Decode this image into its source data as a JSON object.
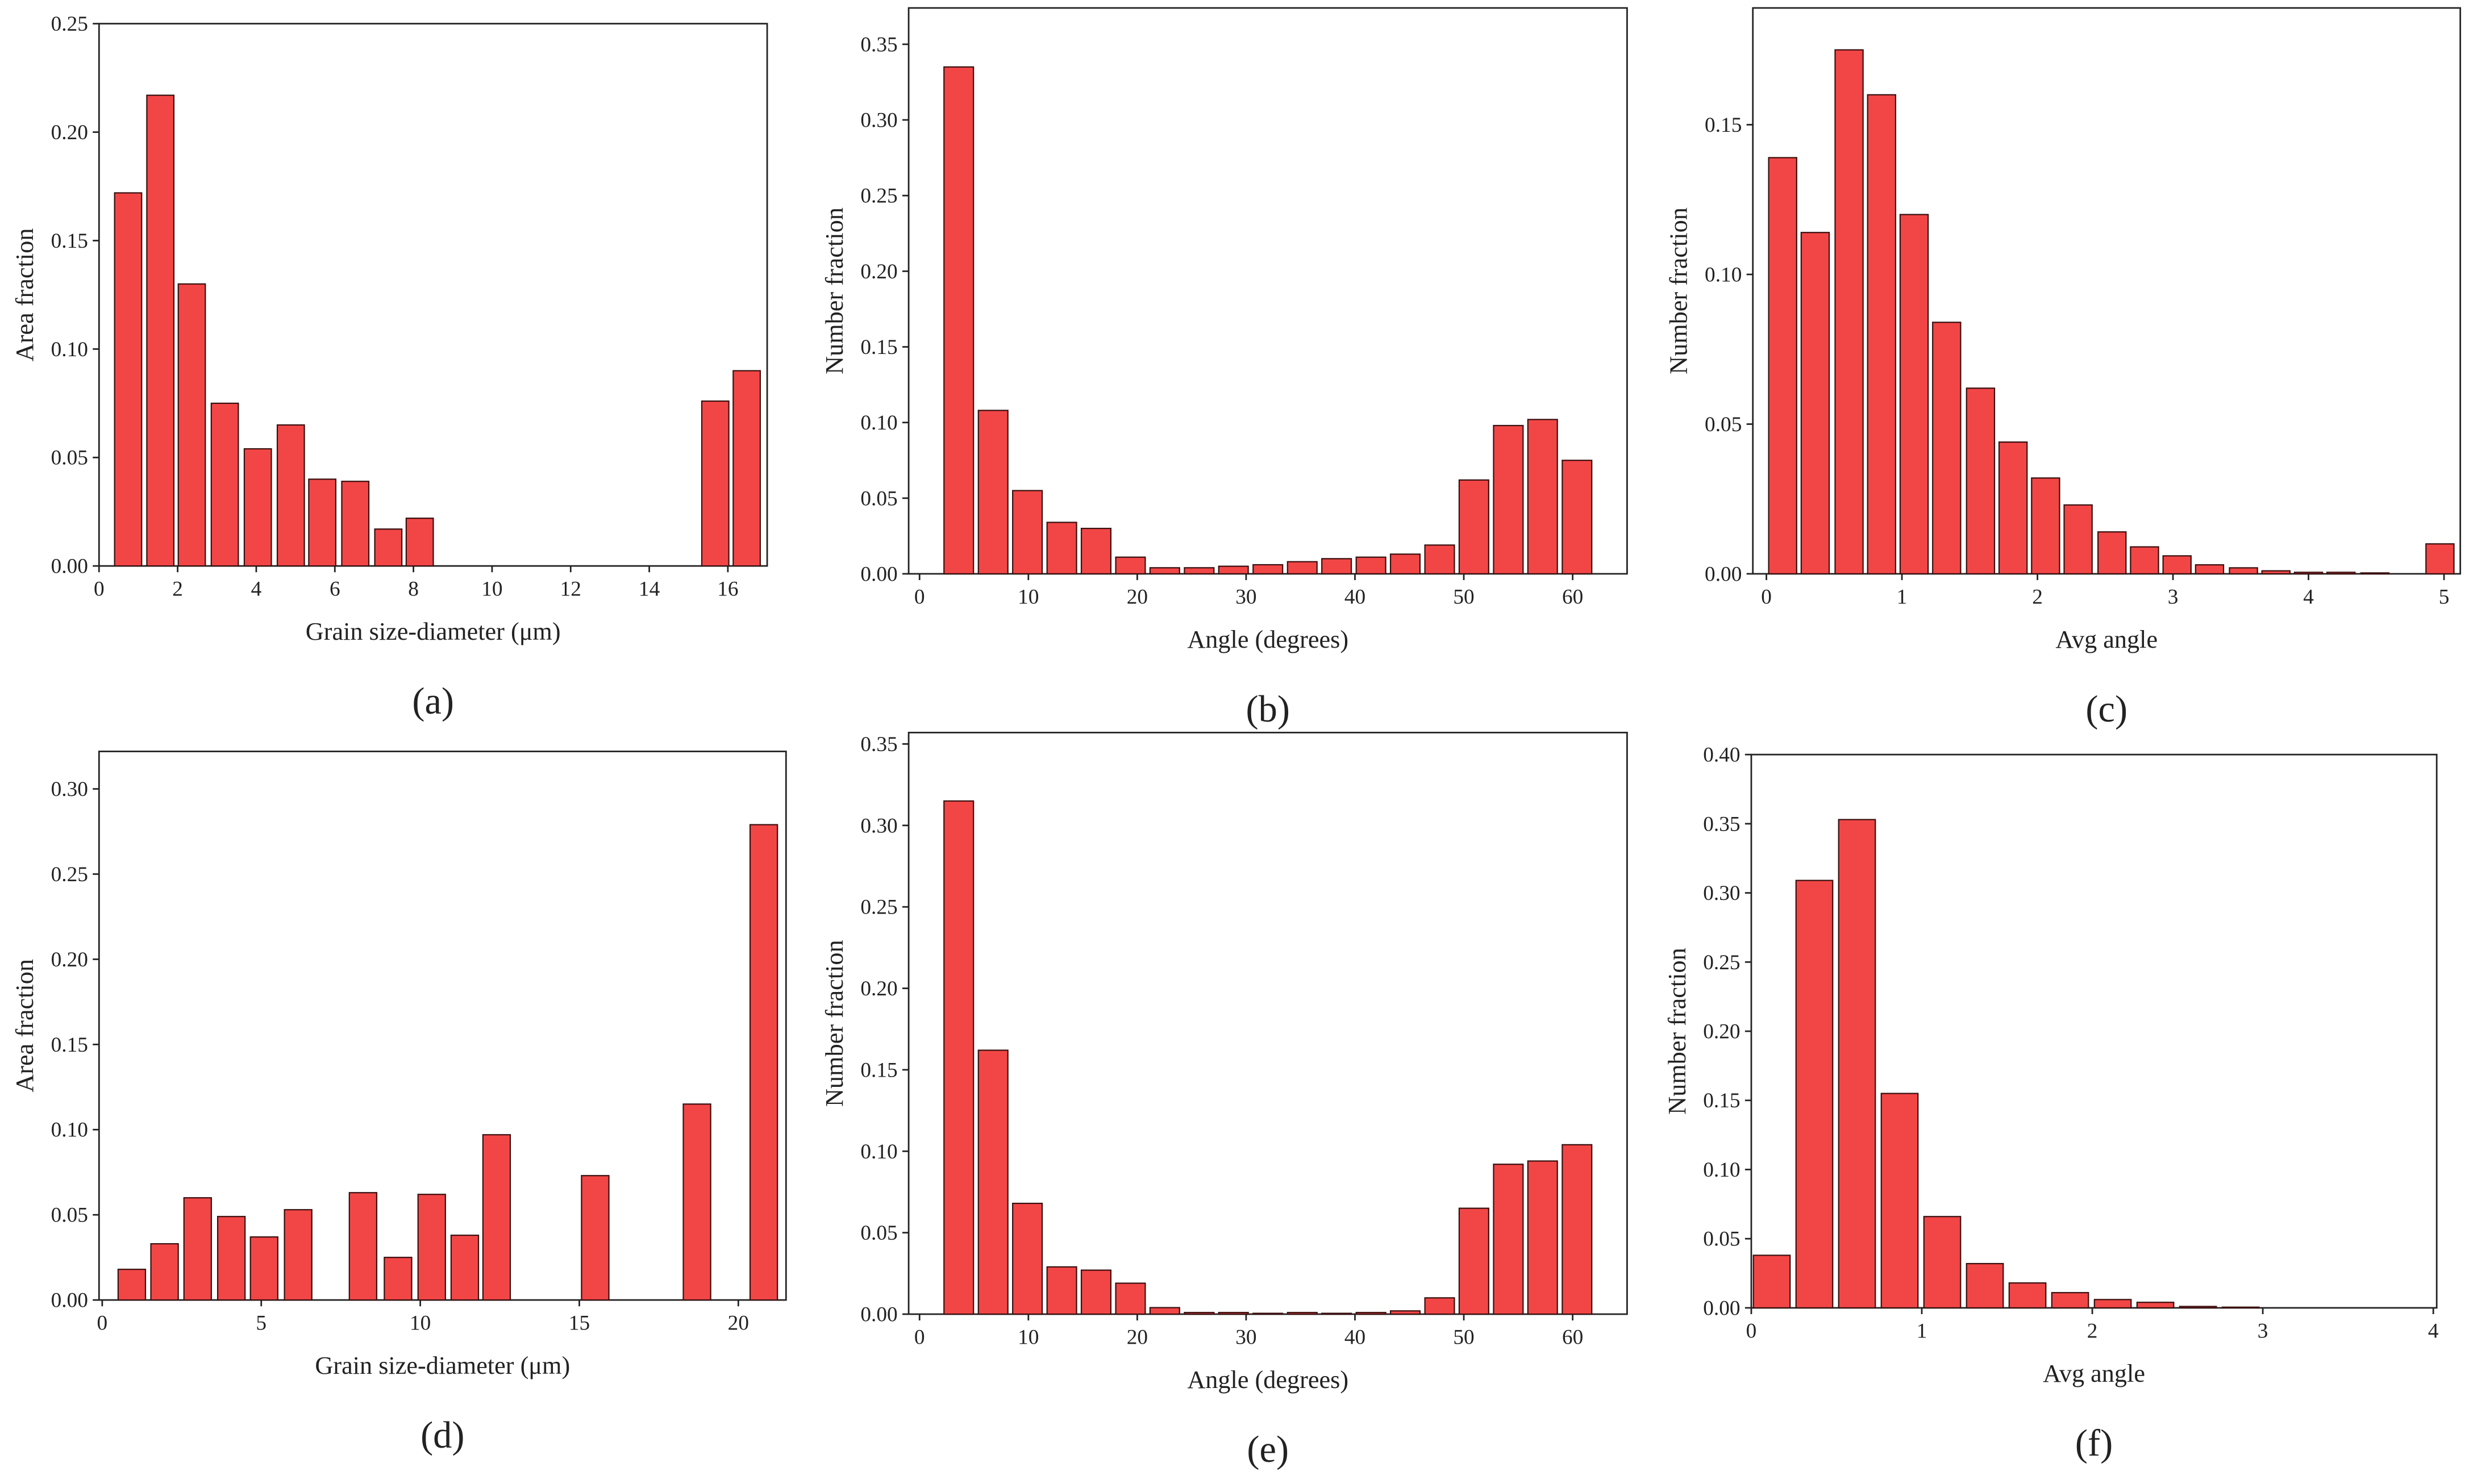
{
  "chart_data": [
    {
      "type": "bar",
      "label": "(a)",
      "xlabel": "Grain size-diameter (μm)",
      "ylabel": "Area fraction",
      "color": "#f24646",
      "x": [
        0.74,
        1.56,
        2.36,
        3.2,
        4.04,
        4.88,
        5.68,
        6.52,
        7.36,
        8.16,
        15.68,
        16.48
      ],
      "values": [
        0.172,
        0.217,
        0.13,
        0.075,
        0.054,
        0.065,
        0.04,
        0.039,
        0.017,
        0.022,
        0.076,
        0.09
      ],
      "xlim": [
        0,
        17
      ],
      "ylim": [
        0,
        0.25
      ],
      "xticks": [
        0,
        2,
        4,
        6,
        8,
        10,
        12,
        14,
        16
      ],
      "yticks": [
        {
          "value": 0,
          "label": "0.00"
        },
        0.05,
        {
          "value": 0.1,
          "label": "0.10"
        },
        0.15,
        {
          "value": 0.2,
          "label": "0.20"
        },
        0.25
      ]
    },
    {
      "type": "bar",
      "label": "(b)",
      "xlabel": "Angle (degrees)",
      "ylabel": "Number fraction",
      "color": "#f24646",
      "x": [
        3.6,
        6.76,
        9.91,
        13.07,
        16.22,
        19.38,
        22.53,
        25.69,
        28.84,
        32.0,
        35.16,
        38.31,
        41.47,
        44.62,
        47.78,
        50.93,
        54.09,
        57.24,
        60.4
      ],
      "values": [
        0.335,
        0.108,
        0.055,
        0.034,
        0.03,
        0.011,
        0.004,
        0.004,
        0.005,
        0.006,
        0.008,
        0.01,
        0.011,
        0.013,
        0.019,
        0.062,
        0.098,
        0.102,
        0.075
      ],
      "xlim": [
        -1,
        65
      ],
      "ylim": [
        0,
        0.374
      ],
      "xticks": [
        0,
        10,
        20,
        30,
        40,
        50,
        60
      ],
      "yticks": [
        {
          "value": 0,
          "label": "0.00"
        },
        0.05,
        {
          "value": 0.1,
          "label": "0.10"
        },
        0.15,
        {
          "value": 0.2,
          "label": "0.20"
        },
        0.25,
        {
          "value": 0.3,
          "label": "0.30"
        },
        0.35
      ]
    },
    {
      "type": "bar",
      "label": "(c)",
      "xlabel": "Avg angle",
      "ylabel": "Number fraction",
      "color": "#f24646",
      "x": [
        0.12,
        0.36,
        0.61,
        0.85,
        1.09,
        1.33,
        1.58,
        1.82,
        2.06,
        2.3,
        2.55,
        2.79,
        3.03,
        3.27,
        3.52,
        3.76,
        4.0,
        4.24,
        4.49,
        4.73,
        4.97
      ],
      "values": [
        0.139,
        0.114,
        0.175,
        0.16,
        0.12,
        0.084,
        0.062,
        0.044,
        0.032,
        0.023,
        0.014,
        0.009,
        0.006,
        0.003,
        0.002,
        0.001,
        0.0005,
        0.0005,
        0.0003,
        0,
        0.01
      ],
      "xlim": [
        -0.1,
        5.12
      ],
      "ylim": [
        0,
        0.189
      ],
      "xticks": [
        0,
        1,
        2,
        3,
        4,
        5
      ],
      "yticks": [
        {
          "value": 0,
          "label": "0.00"
        },
        0.05,
        {
          "value": 0.1,
          "label": "0.10"
        },
        0.15
      ]
    },
    {
      "type": "bar",
      "label": "(d)",
      "xlabel": "Grain size-diameter (μm)",
      "ylabel": "Area fraction",
      "color": "#f24646",
      "x": [
        0.93,
        1.96,
        3.0,
        4.06,
        5.09,
        6.16,
        8.2,
        9.3,
        10.36,
        11.4,
        12.4,
        15.5,
        18.7,
        20.8
      ],
      "values": [
        0.018,
        0.033,
        0.06,
        0.049,
        0.037,
        0.053,
        0.063,
        0.025,
        0.062,
        0.038,
        0.097,
        0.073,
        0.115,
        0.279
      ],
      "xlim": [
        -0.1,
        21.5
      ],
      "ylim": [
        0,
        0.322
      ],
      "xticks": [
        0,
        5,
        10,
        15,
        20
      ],
      "yticks": [
        {
          "value": 0,
          "label": "0.00"
        },
        0.05,
        {
          "value": 0.1,
          "label": "0.10"
        },
        0.15,
        {
          "value": 0.2,
          "label": "0.20"
        },
        0.25,
        {
          "value": 0.3,
          "label": "0.30"
        }
      ]
    },
    {
      "type": "bar",
      "label": "(e)",
      "xlabel": "Angle (degrees)",
      "ylabel": "Number fraction",
      "color": "#f24646",
      "x": [
        3.6,
        6.76,
        9.91,
        13.07,
        16.22,
        19.38,
        22.53,
        25.69,
        28.84,
        32.0,
        35.16,
        38.31,
        41.47,
        44.62,
        47.78,
        50.93,
        54.09,
        57.24,
        60.4
      ],
      "values": [
        0.315,
        0.162,
        0.068,
        0.029,
        0.027,
        0.019,
        0.004,
        0.001,
        0.001,
        0.0005,
        0.001,
        0.0005,
        0.001,
        0.002,
        0.01,
        0.065,
        0.092,
        0.094,
        0.104
      ],
      "xlim": [
        -1,
        65
      ],
      "ylim": [
        0,
        0.357
      ],
      "xticks": [
        0,
        10,
        20,
        30,
        40,
        50,
        60
      ],
      "yticks": [
        {
          "value": 0,
          "label": "0.00"
        },
        0.05,
        {
          "value": 0.1,
          "label": "0.10"
        },
        0.15,
        {
          "value": 0.2,
          "label": "0.20"
        },
        0.25,
        {
          "value": 0.3,
          "label": "0.30"
        },
        0.35
      ]
    },
    {
      "type": "bar",
      "label": "(f)",
      "xlabel": "Avg angle",
      "ylabel": "Number fraction",
      "color": "#f24646",
      "x": [
        0.12,
        0.37,
        0.62,
        0.87,
        1.12,
        1.37,
        1.62,
        1.87,
        2.12,
        2.37,
        2.62,
        2.87
      ],
      "values": [
        0.038,
        0.309,
        0.353,
        0.155,
        0.066,
        0.032,
        0.018,
        0.011,
        0.006,
        0.004,
        0.001,
        0.0005
      ],
      "xlim": [
        0,
        4.02
      ],
      "ylim": [
        0,
        0.4
      ],
      "xticks": [
        0,
        1,
        2,
        3,
        4
      ],
      "yticks": [
        {
          "value": 0,
          "label": "0.00"
        },
        0.05,
        {
          "value": 0.1,
          "label": "0.10"
        },
        0.15,
        {
          "value": 0.2,
          "label": "0.20"
        },
        0.25,
        {
          "value": 0.3,
          "label": "0.30"
        },
        0.35,
        {
          "value": 0.4,
          "label": "0.40"
        }
      ]
    }
  ]
}
